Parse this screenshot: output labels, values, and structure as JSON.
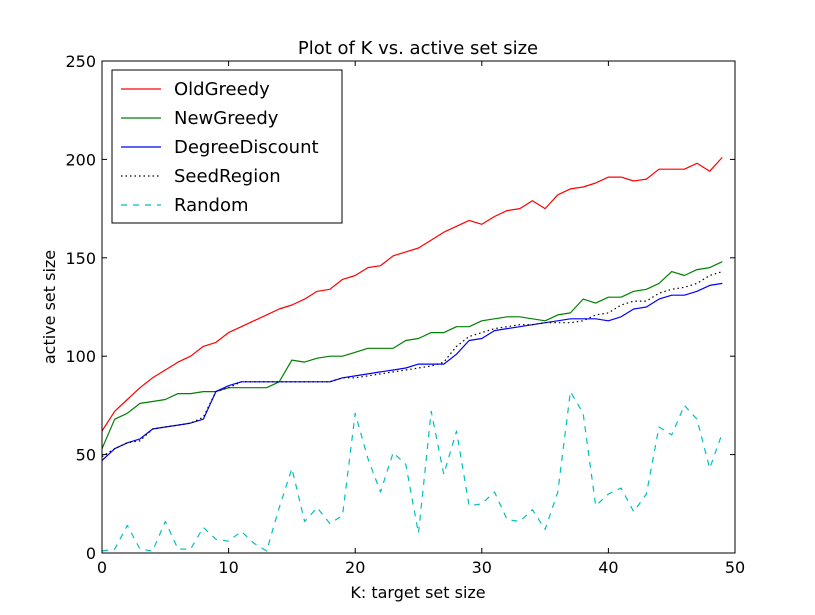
{
  "chart_data": {
    "type": "line",
    "title": "Plot of K vs. active set size",
    "xlabel": "K: target set size",
    "ylabel": "active set size",
    "xlim": [
      0,
      50
    ],
    "ylim": [
      0,
      250
    ],
    "xticks": [
      "0",
      "10",
      "20",
      "30",
      "40",
      "50"
    ],
    "yticks": [
      "0",
      "50",
      "100",
      "150",
      "200",
      "250"
    ],
    "grid": false,
    "legend_position": "top-left",
    "x": [
      0,
      1,
      2,
      3,
      4,
      5,
      6,
      7,
      8,
      9,
      10,
      11,
      12,
      13,
      14,
      15,
      16,
      17,
      18,
      19,
      20,
      21,
      22,
      23,
      24,
      25,
      26,
      27,
      28,
      29,
      30,
      31,
      32,
      33,
      34,
      35,
      36,
      37,
      38,
      39,
      40,
      41,
      42,
      43,
      44,
      45,
      46,
      47,
      48,
      49
    ],
    "series": [
      {
        "name": "OldGreedy",
        "color": "#ff0000",
        "style": "solid",
        "values": [
          62,
          72,
          78,
          84,
          89,
          93,
          97,
          100,
          105,
          107,
          112,
          115,
          118,
          121,
          124,
          126,
          129,
          133,
          134,
          139,
          141,
          145,
          146,
          151,
          153,
          155,
          159,
          163,
          166,
          169,
          167,
          171,
          174,
          175,
          179,
          175,
          182,
          185,
          186,
          188,
          191,
          191,
          189,
          190,
          195,
          195,
          195,
          198,
          194,
          201
        ]
      },
      {
        "name": "NewGreedy",
        "color": "#008000",
        "style": "solid",
        "values": [
          53,
          68,
          71,
          76,
          77,
          78,
          81,
          81,
          82,
          82,
          84,
          84,
          84,
          84,
          87,
          98,
          97,
          99,
          100,
          100,
          102,
          104,
          104,
          104,
          108,
          109,
          112,
          112,
          115,
          115,
          118,
          119,
          120,
          120,
          119,
          118,
          121,
          122,
          129,
          127,
          130,
          130,
          133,
          134,
          137,
          143,
          141,
          144,
          145,
          148
        ]
      },
      {
        "name": "DegreeDiscount",
        "color": "#0000ff",
        "style": "solid",
        "values": [
          47,
          53,
          56,
          58,
          63,
          64,
          65,
          66,
          68,
          82,
          85,
          87,
          87,
          87,
          87,
          87,
          87,
          87,
          87,
          89,
          90,
          91,
          92,
          93,
          94,
          96,
          96,
          96,
          101,
          108,
          109,
          113,
          114,
          115,
          116,
          117,
          118,
          119,
          119,
          119,
          118,
          120,
          124,
          125,
          129,
          131,
          131,
          133,
          136,
          137
        ]
      },
      {
        "name": "SeedRegion",
        "color": "#000000",
        "style": "dotted",
        "values": [
          49,
          53,
          56,
          57,
          63,
          64,
          65,
          66,
          69,
          82,
          84,
          87,
          87,
          87,
          87,
          87,
          87,
          87,
          87,
          89,
          89,
          90,
          91,
          92,
          93,
          94,
          95,
          97,
          105,
          110,
          112,
          114,
          115,
          116,
          116,
          117,
          117,
          117,
          118,
          121,
          122,
          126,
          128,
          128,
          132,
          134,
          135,
          137,
          141,
          143
        ]
      },
      {
        "name": "Random",
        "color": "#00bfbf",
        "style": "dashed",
        "values": [
          1,
          2,
          14,
          2,
          1,
          16,
          2,
          2,
          13,
          7,
          6,
          11,
          5,
          1,
          23,
          43,
          16,
          23,
          15,
          19,
          71,
          48,
          31,
          51,
          45,
          10,
          72,
          40,
          62,
          24,
          25,
          31,
          17,
          16,
          22,
          12,
          31,
          82,
          71,
          24,
          30,
          33,
          21,
          30,
          64,
          60,
          75,
          68,
          43,
          61
        ]
      }
    ]
  }
}
